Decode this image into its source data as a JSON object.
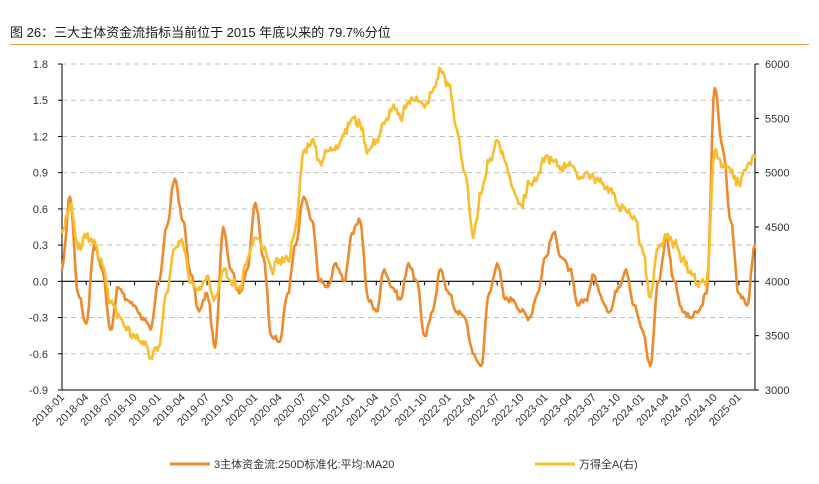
{
  "header": {
    "title": "图 26：三大主体资金流指标当前位于 2015 年底以来的 79.7%分位"
  },
  "colors": {
    "series1": "#EE8A2B",
    "series2": "#F9BE2F",
    "grid": "#bfbfbf",
    "axis": "#000000",
    "accent": "#e39a3b"
  },
  "chart_data": {
    "type": "line",
    "title": "",
    "x_ticks": [
      "2018-01",
      "2018-04",
      "2018-07",
      "2018-10",
      "2019-01",
      "2019-04",
      "2019-07",
      "2019-10",
      "2020-01",
      "2020-04",
      "2020-07",
      "2020-10",
      "2021-01",
      "2021-04",
      "2021-07",
      "2021-10",
      "2022-01",
      "2022-04",
      "2022-07",
      "2022-10",
      "2023-01",
      "2023-04",
      "2023-07",
      "2023-10",
      "2024-01",
      "2024-04",
      "2024-07",
      "2024-10",
      "2025-01"
    ],
    "y_left": {
      "ticks": [
        "1.8",
        "1.5",
        "1.2",
        "0.9",
        "0.6",
        "0.3",
        "0.0",
        "-0.3",
        "-0.6",
        "-0.9"
      ],
      "range": [
        -0.9,
        1.8
      ]
    },
    "y_right": {
      "ticks": [
        "6000",
        "5500",
        "5000",
        "4500",
        "4000",
        "3500",
        "3000"
      ],
      "range": [
        3000,
        6000
      ]
    },
    "grid": "horizontal dashed",
    "legend_position": "bottom",
    "series": [
      {
        "name": "3主体资金流:250D标准化:平均:MA20",
        "axis": "left",
        "color": "#EE8A2B",
        "points": [
          [
            "2018-01",
            0.1
          ],
          [
            "2018-02",
            0.7
          ],
          [
            "2018-03",
            -0.1
          ],
          [
            "2018-04",
            -0.35
          ],
          [
            "2018-05",
            0.3
          ],
          [
            "2018-06",
            0.1
          ],
          [
            "2018-07",
            -0.4
          ],
          [
            "2018-08",
            -0.05
          ],
          [
            "2018-09",
            -0.15
          ],
          [
            "2018-10",
            -0.2
          ],
          [
            "2018-11",
            -0.3
          ],
          [
            "2018-12",
            -0.4
          ],
          [
            "2019-01",
            0.0
          ],
          [
            "2019-02",
            0.45
          ],
          [
            "2019-03",
            0.85
          ],
          [
            "2019-04",
            0.5
          ],
          [
            "2019-05",
            0.05
          ],
          [
            "2019-06",
            -0.25
          ],
          [
            "2019-07",
            -0.1
          ],
          [
            "2019-08",
            -0.55
          ],
          [
            "2019-09",
            0.45
          ],
          [
            "2019-10",
            0.1
          ],
          [
            "2019-11",
            -0.1
          ],
          [
            "2019-12",
            0.1
          ],
          [
            "2020-01",
            0.65
          ],
          [
            "2020-02",
            0.2
          ],
          [
            "2020-03",
            -0.45
          ],
          [
            "2020-04",
            -0.5
          ],
          [
            "2020-05",
            -0.1
          ],
          [
            "2020-06",
            0.3
          ],
          [
            "2020-07",
            0.7
          ],
          [
            "2020-08",
            0.5
          ],
          [
            "2020-09",
            0.0
          ],
          [
            "2020-10",
            -0.05
          ],
          [
            "2020-11",
            0.15
          ],
          [
            "2020-12",
            0.0
          ],
          [
            "2021-01",
            0.4
          ],
          [
            "2021-02",
            0.5
          ],
          [
            "2021-03",
            -0.15
          ],
          [
            "2021-04",
            -0.25
          ],
          [
            "2021-05",
            0.1
          ],
          [
            "2021-06",
            -0.05
          ],
          [
            "2021-07",
            -0.15
          ],
          [
            "2021-08",
            0.15
          ],
          [
            "2021-09",
            0.0
          ],
          [
            "2021-10",
            -0.45
          ],
          [
            "2021-11",
            -0.25
          ],
          [
            "2021-12",
            0.1
          ],
          [
            "2022-01",
            -0.1
          ],
          [
            "2022-02",
            -0.25
          ],
          [
            "2022-03",
            -0.3
          ],
          [
            "2022-04",
            -0.6
          ],
          [
            "2022-05",
            -0.7
          ],
          [
            "2022-06",
            -0.1
          ],
          [
            "2022-07",
            0.15
          ],
          [
            "2022-08",
            -0.15
          ],
          [
            "2022-09",
            -0.15
          ],
          [
            "2022-10",
            -0.25
          ],
          [
            "2022-11",
            -0.3
          ],
          [
            "2022-12",
            -0.1
          ],
          [
            "2023-01",
            0.2
          ],
          [
            "2023-02",
            0.4
          ],
          [
            "2023-03",
            0.2
          ],
          [
            "2023-04",
            0.1
          ],
          [
            "2023-05",
            -0.2
          ],
          [
            "2023-06",
            -0.15
          ],
          [
            "2023-07",
            0.05
          ],
          [
            "2023-08",
            -0.15
          ],
          [
            "2023-09",
            -0.25
          ],
          [
            "2023-10",
            -0.05
          ],
          [
            "2023-11",
            0.1
          ],
          [
            "2023-12",
            -0.2
          ],
          [
            "2024-01",
            -0.4
          ],
          [
            "2024-02",
            -0.7
          ],
          [
            "2024-03",
            0.0
          ],
          [
            "2024-04",
            0.35
          ],
          [
            "2024-05",
            0.0
          ],
          [
            "2024-06",
            -0.25
          ],
          [
            "2024-07",
            -0.3
          ],
          [
            "2024-08",
            -0.25
          ],
          [
            "2024-09",
            -0.1
          ],
          [
            "2024-10",
            1.6
          ],
          [
            "2024-11",
            1.1
          ],
          [
            "2024-12",
            0.5
          ],
          [
            "2025-01",
            -0.1
          ],
          [
            "2025-02",
            -0.2
          ],
          [
            "2025-03",
            0.3
          ]
        ]
      },
      {
        "name": "万得全A(右)",
        "axis": "right",
        "color": "#F9BE2F",
        "points": [
          [
            "2018-01",
            4450
          ],
          [
            "2018-02",
            4700
          ],
          [
            "2018-03",
            4300
          ],
          [
            "2018-04",
            4400
          ],
          [
            "2018-05",
            4380
          ],
          [
            "2018-06",
            4150
          ],
          [
            "2018-07",
            3800
          ],
          [
            "2018-08",
            3700
          ],
          [
            "2018-09",
            3550
          ],
          [
            "2018-10",
            3500
          ],
          [
            "2018-11",
            3450
          ],
          [
            "2018-12",
            3300
          ],
          [
            "2019-01",
            3400
          ],
          [
            "2019-02",
            3900
          ],
          [
            "2019-03",
            4300
          ],
          [
            "2019-04",
            4350
          ],
          [
            "2019-05",
            4000
          ],
          [
            "2019-06",
            3950
          ],
          [
            "2019-07",
            4050
          ],
          [
            "2019-08",
            3850
          ],
          [
            "2019-09",
            4100
          ],
          [
            "2019-10",
            4000
          ],
          [
            "2019-11",
            3950
          ],
          [
            "2019-12",
            4200
          ],
          [
            "2020-01",
            4400
          ],
          [
            "2020-02",
            4300
          ],
          [
            "2020-03",
            4100
          ],
          [
            "2020-04",
            4200
          ],
          [
            "2020-05",
            4200
          ],
          [
            "2020-06",
            4500
          ],
          [
            "2020-07",
            5200
          ],
          [
            "2020-08",
            5300
          ],
          [
            "2020-09",
            5100
          ],
          [
            "2020-10",
            5200
          ],
          [
            "2020-11",
            5250
          ],
          [
            "2020-12",
            5350
          ],
          [
            "2021-01",
            5500
          ],
          [
            "2021-02",
            5450
          ],
          [
            "2021-03",
            5200
          ],
          [
            "2021-04",
            5300
          ],
          [
            "2021-05",
            5450
          ],
          [
            "2021-06",
            5600
          ],
          [
            "2021-07",
            5500
          ],
          [
            "2021-08",
            5650
          ],
          [
            "2021-09",
            5700
          ],
          [
            "2021-10",
            5600
          ],
          [
            "2021-11",
            5750
          ],
          [
            "2021-12",
            5950
          ],
          [
            "2022-01",
            5800
          ],
          [
            "2022-02",
            5400
          ],
          [
            "2022-03",
            5000
          ],
          [
            "2022-04",
            4400
          ],
          [
            "2022-05",
            4800
          ],
          [
            "2022-06",
            5100
          ],
          [
            "2022-07",
            5300
          ],
          [
            "2022-08",
            5100
          ],
          [
            "2022-09",
            4850
          ],
          [
            "2022-10",
            4700
          ],
          [
            "2022-11",
            4900
          ],
          [
            "2022-12",
            4950
          ],
          [
            "2023-01",
            5150
          ],
          [
            "2023-02",
            5100
          ],
          [
            "2023-03",
            5050
          ],
          [
            "2023-04",
            5100
          ],
          [
            "2023-05",
            4950
          ],
          [
            "2023-06",
            5000
          ],
          [
            "2023-07",
            4950
          ],
          [
            "2023-08",
            4900
          ],
          [
            "2023-09",
            4850
          ],
          [
            "2023-10",
            4700
          ],
          [
            "2023-11",
            4650
          ],
          [
            "2023-12",
            4600
          ],
          [
            "2024-01",
            4300
          ],
          [
            "2024-02",
            3850
          ],
          [
            "2024-03",
            4300
          ],
          [
            "2024-04",
            4400
          ],
          [
            "2024-05",
            4350
          ],
          [
            "2024-06",
            4200
          ],
          [
            "2024-07",
            4100
          ],
          [
            "2024-08",
            3950
          ],
          [
            "2024-09",
            4000
          ],
          [
            "2024-10",
            5200
          ],
          [
            "2024-11",
            5050
          ],
          [
            "2024-12",
            5000
          ],
          [
            "2025-01",
            4900
          ],
          [
            "2025-02",
            5050
          ],
          [
            "2025-03",
            5150
          ]
        ]
      }
    ]
  }
}
